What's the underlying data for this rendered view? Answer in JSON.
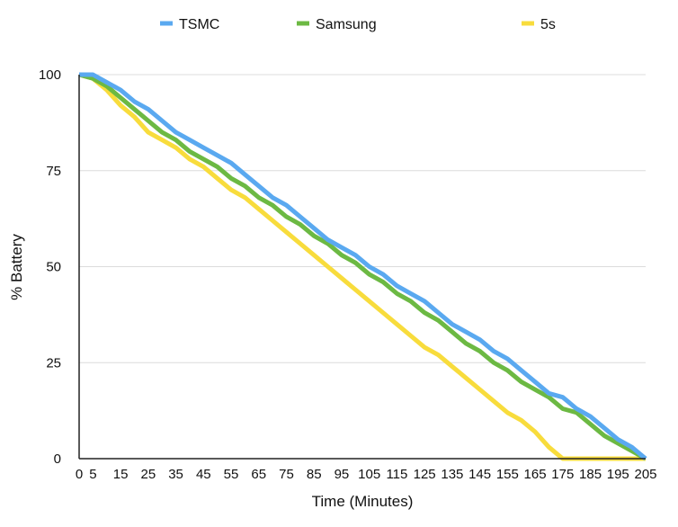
{
  "chart_data": {
    "type": "line",
    "title": "",
    "xlabel": "Time (Minutes)",
    "ylabel": "% Battery",
    "xlim": [
      0,
      205
    ],
    "ylim": [
      0,
      100
    ],
    "x_ticks": [
      "0",
      "5",
      "15",
      "25",
      "35",
      "45",
      "55",
      "65",
      "75",
      "85",
      "95",
      "105",
      "115",
      "125",
      "135",
      "145",
      "155",
      "165",
      "175",
      "185",
      "195",
      "205"
    ],
    "y_ticks": [
      "0",
      "25",
      "50",
      "75",
      "100"
    ],
    "grid": true,
    "legend_position": "top",
    "x": [
      0,
      5,
      10,
      15,
      20,
      25,
      30,
      35,
      40,
      45,
      50,
      55,
      60,
      65,
      70,
      75,
      80,
      85,
      90,
      95,
      100,
      105,
      110,
      115,
      120,
      125,
      130,
      135,
      140,
      145,
      150,
      155,
      160,
      165,
      170,
      175,
      180,
      185,
      190,
      195,
      200,
      205
    ],
    "series": [
      {
        "name": "TSMC",
        "color": "#5aa9f0",
        "values": [
          100,
          100,
          98,
          96,
          93,
          91,
          88,
          85,
          83,
          81,
          79,
          77,
          74,
          71,
          68,
          66,
          63,
          60,
          57,
          55,
          53,
          50,
          48,
          45,
          43,
          41,
          38,
          35,
          33,
          31,
          28,
          26,
          23,
          20,
          17,
          16,
          13,
          11,
          8,
          5,
          3,
          0
        ]
      },
      {
        "name": "Samsung",
        "color": "#6cb943",
        "values": [
          100,
          99,
          97,
          94,
          91,
          88,
          85,
          83,
          80,
          78,
          76,
          73,
          71,
          68,
          66,
          63,
          61,
          58,
          56,
          53,
          51,
          48,
          46,
          43,
          41,
          38,
          36,
          33,
          30,
          28,
          25,
          23,
          20,
          18,
          16,
          13,
          12,
          9,
          6,
          4,
          2,
          0
        ]
      },
      {
        "name": "5s",
        "color": "#f8dc3c",
        "values": [
          100,
          99,
          96,
          92,
          89,
          85,
          83,
          81,
          78,
          76,
          73,
          70,
          68,
          65,
          62,
          59,
          56,
          53,
          50,
          47,
          44,
          41,
          38,
          35,
          32,
          29,
          27,
          24,
          21,
          18,
          15,
          12,
          10,
          7,
          3,
          0,
          0,
          0,
          0,
          0,
          0,
          0
        ]
      }
    ]
  }
}
